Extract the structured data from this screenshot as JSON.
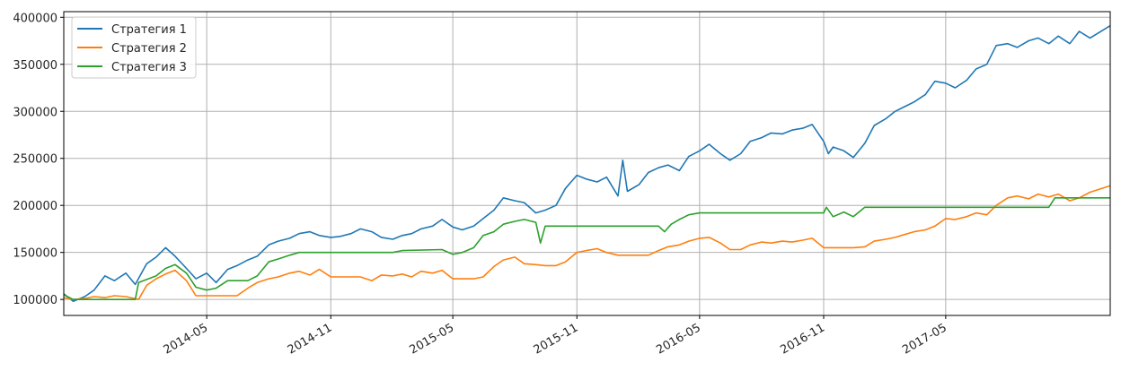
{
  "chart_data": {
    "type": "line",
    "title": "",
    "xlabel": "",
    "ylabel": "",
    "grid": true,
    "legend_position": "top-left",
    "x_range": [
      "2013-10-01",
      "2017-12-31"
    ],
    "ylim": [
      83000,
      406000
    ],
    "x_ticks": [
      {
        "date": "2014-05-01",
        "label": "2014-05"
      },
      {
        "date": "2014-11-01",
        "label": "2014-11"
      },
      {
        "date": "2015-05-01",
        "label": "2015-05"
      },
      {
        "date": "2015-11-01",
        "label": "2015-11"
      },
      {
        "date": "2016-05-01",
        "label": "2016-05"
      },
      {
        "date": "2016-11-01",
        "label": "2016-11"
      },
      {
        "date": "2017-05-01",
        "label": "2017-05"
      }
    ],
    "y_ticks": [
      100000,
      150000,
      200000,
      250000,
      300000,
      350000,
      400000
    ],
    "series": [
      {
        "name": "Стратегия 1",
        "color": "#1f77b4",
        "points": [
          [
            "2013-10-01",
            106000
          ],
          [
            "2013-10-15",
            98000
          ],
          [
            "2013-11-01",
            103000
          ],
          [
            "2013-11-15",
            110000
          ],
          [
            "2013-12-01",
            125000
          ],
          [
            "2013-12-15",
            120000
          ],
          [
            "2014-01-01",
            128000
          ],
          [
            "2014-01-15",
            116000
          ],
          [
            "2014-02-01",
            138000
          ],
          [
            "2014-02-15",
            145000
          ],
          [
            "2014-03-01",
            155000
          ],
          [
            "2014-03-15",
            146000
          ],
          [
            "2014-04-01",
            133000
          ],
          [
            "2014-04-15",
            122000
          ],
          [
            "2014-05-01",
            128000
          ],
          [
            "2014-05-15",
            118000
          ],
          [
            "2014-06-01",
            132000
          ],
          [
            "2014-06-15",
            136000
          ],
          [
            "2014-07-01",
            142000
          ],
          [
            "2014-07-15",
            146000
          ],
          [
            "2014-08-01",
            158000
          ],
          [
            "2014-08-15",
            162000
          ],
          [
            "2014-09-01",
            165000
          ],
          [
            "2014-09-15",
            170000
          ],
          [
            "2014-10-01",
            172000
          ],
          [
            "2014-10-15",
            168000
          ],
          [
            "2014-11-01",
            166000
          ],
          [
            "2014-11-15",
            167000
          ],
          [
            "2014-12-01",
            170000
          ],
          [
            "2014-12-15",
            175000
          ],
          [
            "2015-01-01",
            172000
          ],
          [
            "2015-01-15",
            166000
          ],
          [
            "2015-02-01",
            164000
          ],
          [
            "2015-02-15",
            168000
          ],
          [
            "2015-03-01",
            170000
          ],
          [
            "2015-03-15",
            175000
          ],
          [
            "2015-04-01",
            178000
          ],
          [
            "2015-04-15",
            185000
          ],
          [
            "2015-05-01",
            177000
          ],
          [
            "2015-05-15",
            174000
          ],
          [
            "2015-06-01",
            178000
          ],
          [
            "2015-06-15",
            186000
          ],
          [
            "2015-07-01",
            195000
          ],
          [
            "2015-07-15",
            208000
          ],
          [
            "2015-08-01",
            205000
          ],
          [
            "2015-08-15",
            203000
          ],
          [
            "2015-09-01",
            192000
          ],
          [
            "2015-09-15",
            195000
          ],
          [
            "2015-10-01",
            200000
          ],
          [
            "2015-10-15",
            218000
          ],
          [
            "2015-11-01",
            232000
          ],
          [
            "2015-11-15",
            228000
          ],
          [
            "2015-12-01",
            225000
          ],
          [
            "2015-12-15",
            230000
          ],
          [
            "2016-01-01",
            210000
          ],
          [
            "2016-01-08",
            248000
          ],
          [
            "2016-01-15",
            215000
          ],
          [
            "2016-02-01",
            222000
          ],
          [
            "2016-02-15",
            235000
          ],
          [
            "2016-03-01",
            240000
          ],
          [
            "2016-03-15",
            243000
          ],
          [
            "2016-04-01",
            237000
          ],
          [
            "2016-04-15",
            252000
          ],
          [
            "2016-05-01",
            258000
          ],
          [
            "2016-05-15",
            265000
          ],
          [
            "2016-06-01",
            255000
          ],
          [
            "2016-06-15",
            248000
          ],
          [
            "2016-07-01",
            255000
          ],
          [
            "2016-07-15",
            268000
          ],
          [
            "2016-08-01",
            272000
          ],
          [
            "2016-08-15",
            277000
          ],
          [
            "2016-09-01",
            276000
          ],
          [
            "2016-09-15",
            280000
          ],
          [
            "2016-10-01",
            282000
          ],
          [
            "2016-10-15",
            286000
          ],
          [
            "2016-11-01",
            268000
          ],
          [
            "2016-11-08",
            255000
          ],
          [
            "2016-11-15",
            262000
          ],
          [
            "2016-12-01",
            258000
          ],
          [
            "2016-12-15",
            251000
          ],
          [
            "2017-01-01",
            266000
          ],
          [
            "2017-01-15",
            285000
          ],
          [
            "2017-02-01",
            292000
          ],
          [
            "2017-02-15",
            300000
          ],
          [
            "2017-03-01",
            305000
          ],
          [
            "2017-03-15",
            310000
          ],
          [
            "2017-04-01",
            318000
          ],
          [
            "2017-04-15",
            332000
          ],
          [
            "2017-05-01",
            330000
          ],
          [
            "2017-05-15",
            325000
          ],
          [
            "2017-06-01",
            333000
          ],
          [
            "2017-06-15",
            345000
          ],
          [
            "2017-07-01",
            350000
          ],
          [
            "2017-07-15",
            370000
          ],
          [
            "2017-08-01",
            372000
          ],
          [
            "2017-08-15",
            368000
          ],
          [
            "2017-09-01",
            375000
          ],
          [
            "2017-09-15",
            378000
          ],
          [
            "2017-10-01",
            372000
          ],
          [
            "2017-10-15",
            380000
          ],
          [
            "2017-11-01",
            372000
          ],
          [
            "2017-11-15",
            385000
          ],
          [
            "2017-12-01",
            378000
          ],
          [
            "2017-12-31",
            391000
          ]
        ]
      },
      {
        "name": "Стратегия 2",
        "color": "#ff7f0e",
        "points": [
          [
            "2013-10-01",
            102000
          ],
          [
            "2013-10-15",
            100000
          ],
          [
            "2013-11-01",
            101000
          ],
          [
            "2013-11-15",
            103000
          ],
          [
            "2013-12-01",
            102000
          ],
          [
            "2013-12-15",
            104000
          ],
          [
            "2014-01-01",
            103000
          ],
          [
            "2014-01-20",
            100000
          ],
          [
            "2014-02-01",
            115000
          ],
          [
            "2014-02-15",
            122000
          ],
          [
            "2014-03-01",
            127000
          ],
          [
            "2014-03-15",
            131000
          ],
          [
            "2014-04-01",
            120000
          ],
          [
            "2014-04-15",
            104000
          ],
          [
            "2014-05-01",
            104000
          ],
          [
            "2014-05-15",
            104000
          ],
          [
            "2014-06-01",
            104000
          ],
          [
            "2014-06-15",
            104000
          ],
          [
            "2014-07-01",
            112000
          ],
          [
            "2014-07-15",
            118000
          ],
          [
            "2014-08-01",
            122000
          ],
          [
            "2014-08-15",
            124000
          ],
          [
            "2014-09-01",
            128000
          ],
          [
            "2014-09-15",
            130000
          ],
          [
            "2014-10-01",
            126000
          ],
          [
            "2014-10-15",
            132000
          ],
          [
            "2014-11-01",
            124000
          ],
          [
            "2014-11-15",
            124000
          ],
          [
            "2014-12-01",
            124000
          ],
          [
            "2014-12-15",
            124000
          ],
          [
            "2015-01-01",
            120000
          ],
          [
            "2015-01-15",
            126000
          ],
          [
            "2015-02-01",
            125000
          ],
          [
            "2015-02-15",
            127000
          ],
          [
            "2015-03-01",
            124000
          ],
          [
            "2015-03-15",
            130000
          ],
          [
            "2015-04-01",
            128000
          ],
          [
            "2015-04-15",
            131000
          ],
          [
            "2015-05-01",
            122000
          ],
          [
            "2015-05-15",
            122000
          ],
          [
            "2015-06-01",
            122000
          ],
          [
            "2015-06-15",
            124000
          ],
          [
            "2015-07-01",
            135000
          ],
          [
            "2015-07-15",
            142000
          ],
          [
            "2015-08-01",
            145000
          ],
          [
            "2015-08-15",
            138000
          ],
          [
            "2015-09-01",
            137000
          ],
          [
            "2015-09-15",
            136000
          ],
          [
            "2015-10-01",
            136000
          ],
          [
            "2015-10-15",
            140000
          ],
          [
            "2015-11-01",
            150000
          ],
          [
            "2015-11-15",
            152000
          ],
          [
            "2015-12-01",
            154000
          ],
          [
            "2015-12-15",
            150000
          ],
          [
            "2016-01-01",
            147000
          ],
          [
            "2016-01-15",
            147000
          ],
          [
            "2016-02-01",
            147000
          ],
          [
            "2016-02-15",
            147000
          ],
          [
            "2016-03-01",
            152000
          ],
          [
            "2016-03-15",
            156000
          ],
          [
            "2016-04-01",
            158000
          ],
          [
            "2016-04-15",
            162000
          ],
          [
            "2016-05-01",
            165000
          ],
          [
            "2016-05-15",
            166000
          ],
          [
            "2016-06-01",
            160000
          ],
          [
            "2016-06-15",
            153000
          ],
          [
            "2016-07-01",
            153000
          ],
          [
            "2016-07-15",
            158000
          ],
          [
            "2016-08-01",
            161000
          ],
          [
            "2016-08-15",
            160000
          ],
          [
            "2016-09-01",
            162000
          ],
          [
            "2016-09-15",
            161000
          ],
          [
            "2016-10-01",
            163000
          ],
          [
            "2016-10-15",
            165000
          ],
          [
            "2016-11-01",
            155000
          ],
          [
            "2016-11-15",
            155000
          ],
          [
            "2016-12-01",
            155000
          ],
          [
            "2016-12-15",
            155000
          ],
          [
            "2017-01-01",
            156000
          ],
          [
            "2017-01-15",
            162000
          ],
          [
            "2017-02-01",
            164000
          ],
          [
            "2017-02-15",
            166000
          ],
          [
            "2017-03-01",
            169000
          ],
          [
            "2017-03-15",
            172000
          ],
          [
            "2017-04-01",
            174000
          ],
          [
            "2017-04-15",
            178000
          ],
          [
            "2017-05-01",
            186000
          ],
          [
            "2017-05-15",
            185000
          ],
          [
            "2017-06-01",
            188000
          ],
          [
            "2017-06-15",
            192000
          ],
          [
            "2017-07-01",
            190000
          ],
          [
            "2017-07-15",
            200000
          ],
          [
            "2017-08-01",
            208000
          ],
          [
            "2017-08-15",
            210000
          ],
          [
            "2017-09-01",
            207000
          ],
          [
            "2017-09-15",
            212000
          ],
          [
            "2017-10-01",
            209000
          ],
          [
            "2017-10-15",
            212000
          ],
          [
            "2017-11-01",
            205000
          ],
          [
            "2017-11-15",
            208000
          ],
          [
            "2017-12-01",
            214000
          ],
          [
            "2017-12-31",
            221000
          ]
        ]
      },
      {
        "name": "Стратегия 3",
        "color": "#2ca02c",
        "points": [
          [
            "2013-10-01",
            105000
          ],
          [
            "2013-10-15",
            100000
          ],
          [
            "2013-11-01",
            100000
          ],
          [
            "2013-12-01",
            100000
          ],
          [
            "2014-01-15",
            100000
          ],
          [
            "2014-01-20",
            118000
          ],
          [
            "2014-02-15",
            125000
          ],
          [
            "2014-03-01",
            133000
          ],
          [
            "2014-03-15",
            137000
          ],
          [
            "2014-04-01",
            128000
          ],
          [
            "2014-04-15",
            113000
          ],
          [
            "2014-05-01",
            110000
          ],
          [
            "2014-05-15",
            112000
          ],
          [
            "2014-06-01",
            120000
          ],
          [
            "2014-07-01",
            120000
          ],
          [
            "2014-07-15",
            125000
          ],
          [
            "2014-08-01",
            140000
          ],
          [
            "2014-08-15",
            143000
          ],
          [
            "2014-09-01",
            147000
          ],
          [
            "2014-09-15",
            150000
          ],
          [
            "2014-10-15",
            150000
          ],
          [
            "2014-11-01",
            150000
          ],
          [
            "2015-01-01",
            150000
          ],
          [
            "2015-02-01",
            150000
          ],
          [
            "2015-02-15",
            152000
          ],
          [
            "2015-04-15",
            153000
          ],
          [
            "2015-05-01",
            148000
          ],
          [
            "2015-05-15",
            150000
          ],
          [
            "2015-06-01",
            155000
          ],
          [
            "2015-06-15",
            168000
          ],
          [
            "2015-07-01",
            172000
          ],
          [
            "2015-07-15",
            180000
          ],
          [
            "2015-08-01",
            183000
          ],
          [
            "2015-08-15",
            185000
          ],
          [
            "2015-09-01",
            182000
          ],
          [
            "2015-09-08",
            160000
          ],
          [
            "2015-09-15",
            178000
          ],
          [
            "2015-10-01",
            178000
          ],
          [
            "2016-01-01",
            178000
          ],
          [
            "2016-03-01",
            178000
          ],
          [
            "2016-03-10",
            172000
          ],
          [
            "2016-03-20",
            180000
          ],
          [
            "2016-04-01",
            185000
          ],
          [
            "2016-04-15",
            190000
          ],
          [
            "2016-05-01",
            192000
          ],
          [
            "2016-08-01",
            192000
          ],
          [
            "2016-11-01",
            192000
          ],
          [
            "2016-11-05",
            198000
          ],
          [
            "2016-11-15",
            188000
          ],
          [
            "2016-12-01",
            193000
          ],
          [
            "2016-12-15",
            188000
          ],
          [
            "2017-01-01",
            198000
          ],
          [
            "2017-05-01",
            198000
          ],
          [
            "2017-09-01",
            198000
          ],
          [
            "2017-10-01",
            198000
          ],
          [
            "2017-10-10",
            208000
          ],
          [
            "2017-12-31",
            208000
          ]
        ]
      }
    ]
  }
}
